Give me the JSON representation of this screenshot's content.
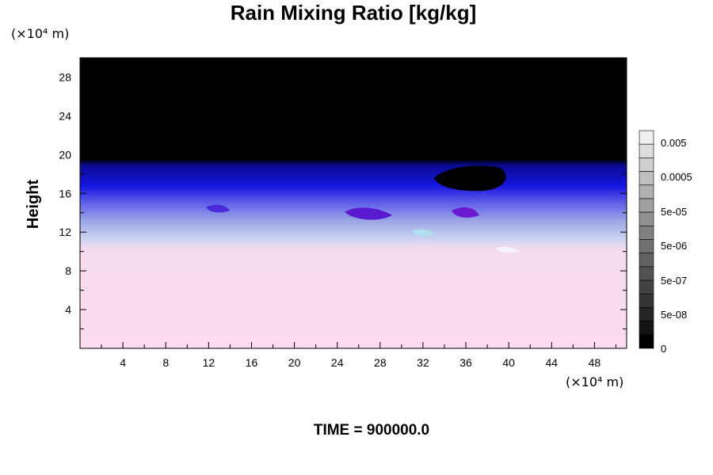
{
  "chart_data": {
    "type": "heatmap",
    "title": "Rain Mixing Ratio [kg/kg]",
    "xlabel": "",
    "ylabel": "Height",
    "x_unit": "(×10⁴ m)",
    "y_unit": "(×10⁴ m)",
    "xlim": [
      0,
      51
    ],
    "ylim": [
      0,
      30
    ],
    "x_ticks": [
      4,
      8,
      12,
      16,
      20,
      24,
      28,
      32,
      36,
      40,
      44,
      48
    ],
    "y_ticks": [
      4,
      8,
      12,
      16,
      20,
      24,
      28
    ],
    "colorbar_labels": [
      "0.005",
      "0.0005",
      "5e-05",
      "5e-06",
      "5e-07",
      "5e-08",
      "0"
    ],
    "footer": "TIME = 900000.0",
    "colors": {
      "top": "#000000",
      "upper": "#1010e0",
      "middle": "#9ea8e8",
      "lower": "#fcdcee"
    }
  }
}
